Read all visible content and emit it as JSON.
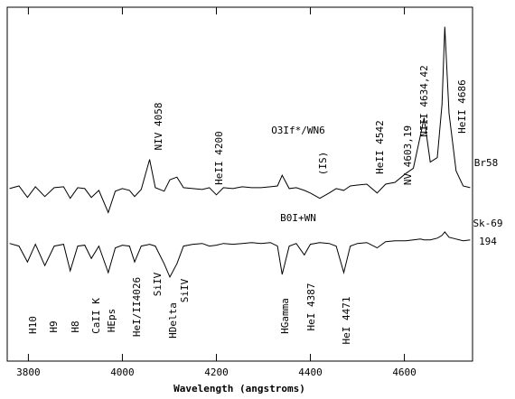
{
  "chart_data": {
    "type": "line",
    "xlabel": "Wavelength (angstroms)",
    "xlim": [
      3755,
      4745
    ],
    "ylim": [
      0,
      4
    ],
    "xticks": [
      3800,
      4000,
      4200,
      4400,
      4600
    ],
    "x": [
      3760,
      3780,
      3798,
      3815,
      3835,
      3855,
      3875,
      3889,
      3905,
      3920,
      3934,
      3950,
      3970,
      3985,
      4000,
      4015,
      4026,
      4040,
      4058,
      4070,
      4089,
      4101,
      4116,
      4130,
      4150,
      4170,
      4185,
      4200,
      4215,
      4235,
      4255,
      4275,
      4295,
      4315,
      4330,
      4340,
      4355,
      4370,
      4387,
      4400,
      4420,
      4440,
      4455,
      4471,
      4485,
      4500,
      4520,
      4542,
      4560,
      4580,
      4603,
      4619,
      4634,
      4642,
      4655,
      4670,
      4680,
      4686,
      4695,
      4710,
      4725,
      4740
    ],
    "series": [
      {
        "name": "Br58",
        "color": "#000000",
        "values": [
          1.95,
          1.98,
          1.85,
          1.97,
          1.86,
          1.96,
          1.97,
          1.84,
          1.96,
          1.95,
          1.85,
          1.93,
          1.68,
          1.92,
          1.95,
          1.93,
          1.86,
          1.94,
          2.28,
          1.96,
          1.92,
          2.05,
          2.08,
          1.96,
          1.95,
          1.94,
          1.96,
          1.88,
          1.96,
          1.95,
          1.97,
          1.96,
          1.96,
          1.97,
          1.98,
          2.1,
          1.95,
          1.96,
          1.93,
          1.9,
          1.84,
          1.9,
          1.95,
          1.93,
          1.98,
          1.99,
          2.0,
          1.9,
          2.0,
          2.02,
          2.12,
          2.18,
          2.55,
          2.75,
          2.25,
          2.3,
          2.9,
          3.78,
          2.8,
          2.15,
          1.98,
          1.96
        ]
      },
      {
        "name": "Sk-69 194",
        "color": "#000000",
        "values": [
          1.33,
          1.3,
          1.12,
          1.32,
          1.08,
          1.3,
          1.32,
          1.02,
          1.3,
          1.31,
          1.16,
          1.3,
          1.0,
          1.28,
          1.31,
          1.3,
          1.12,
          1.3,
          1.32,
          1.3,
          1.1,
          0.95,
          1.1,
          1.3,
          1.32,
          1.33,
          1.3,
          1.31,
          1.33,
          1.32,
          1.33,
          1.34,
          1.33,
          1.34,
          1.3,
          0.98,
          1.3,
          1.33,
          1.2,
          1.32,
          1.34,
          1.33,
          1.3,
          1.0,
          1.3,
          1.33,
          1.34,
          1.28,
          1.35,
          1.36,
          1.36,
          1.37,
          1.38,
          1.37,
          1.37,
          1.39,
          1.42,
          1.46,
          1.4,
          1.38,
          1.36,
          1.37
        ]
      }
    ],
    "annotations": [
      "NIV 4058",
      "HeII 4200",
      "O3If*/WN6",
      "(IS)",
      "HeII 4542",
      "NV 4603,19",
      "NIII 4634,42",
      "HeII 4686",
      "Br58",
      "B0I+WN",
      "Sk-69",
      "194",
      "H10",
      "H9",
      "H8",
      "CaII K",
      "HEps",
      "HeI/II4026",
      "SiIV",
      "HDelta",
      "SiIV",
      "HGamma",
      "HeI 4387",
      "HeI 4471"
    ]
  }
}
